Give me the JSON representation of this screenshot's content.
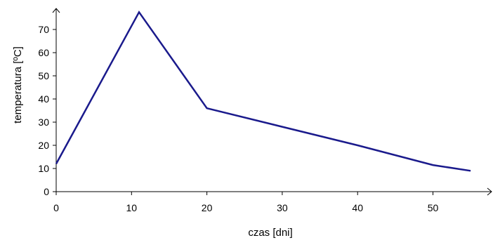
{
  "chart_data": {
    "type": "line",
    "title": "",
    "xlabel": "czas [dni]",
    "ylabel": "temperatura [ºC]",
    "xlim": [
      0,
      60
    ],
    "ylim": [
      0,
      80
    ],
    "x_ticks": [
      0,
      10,
      20,
      30,
      40,
      50
    ],
    "y_ticks": [
      0,
      10,
      20,
      30,
      40,
      50,
      60,
      70
    ],
    "grid": false,
    "legend": "none",
    "series": [
      {
        "color": "#1a1a8c",
        "x": [
          0,
          11,
          20,
          30,
          40,
          50,
          55
        ],
        "y": [
          12,
          77.5,
          36,
          28,
          20,
          11.5,
          9
        ]
      }
    ]
  }
}
